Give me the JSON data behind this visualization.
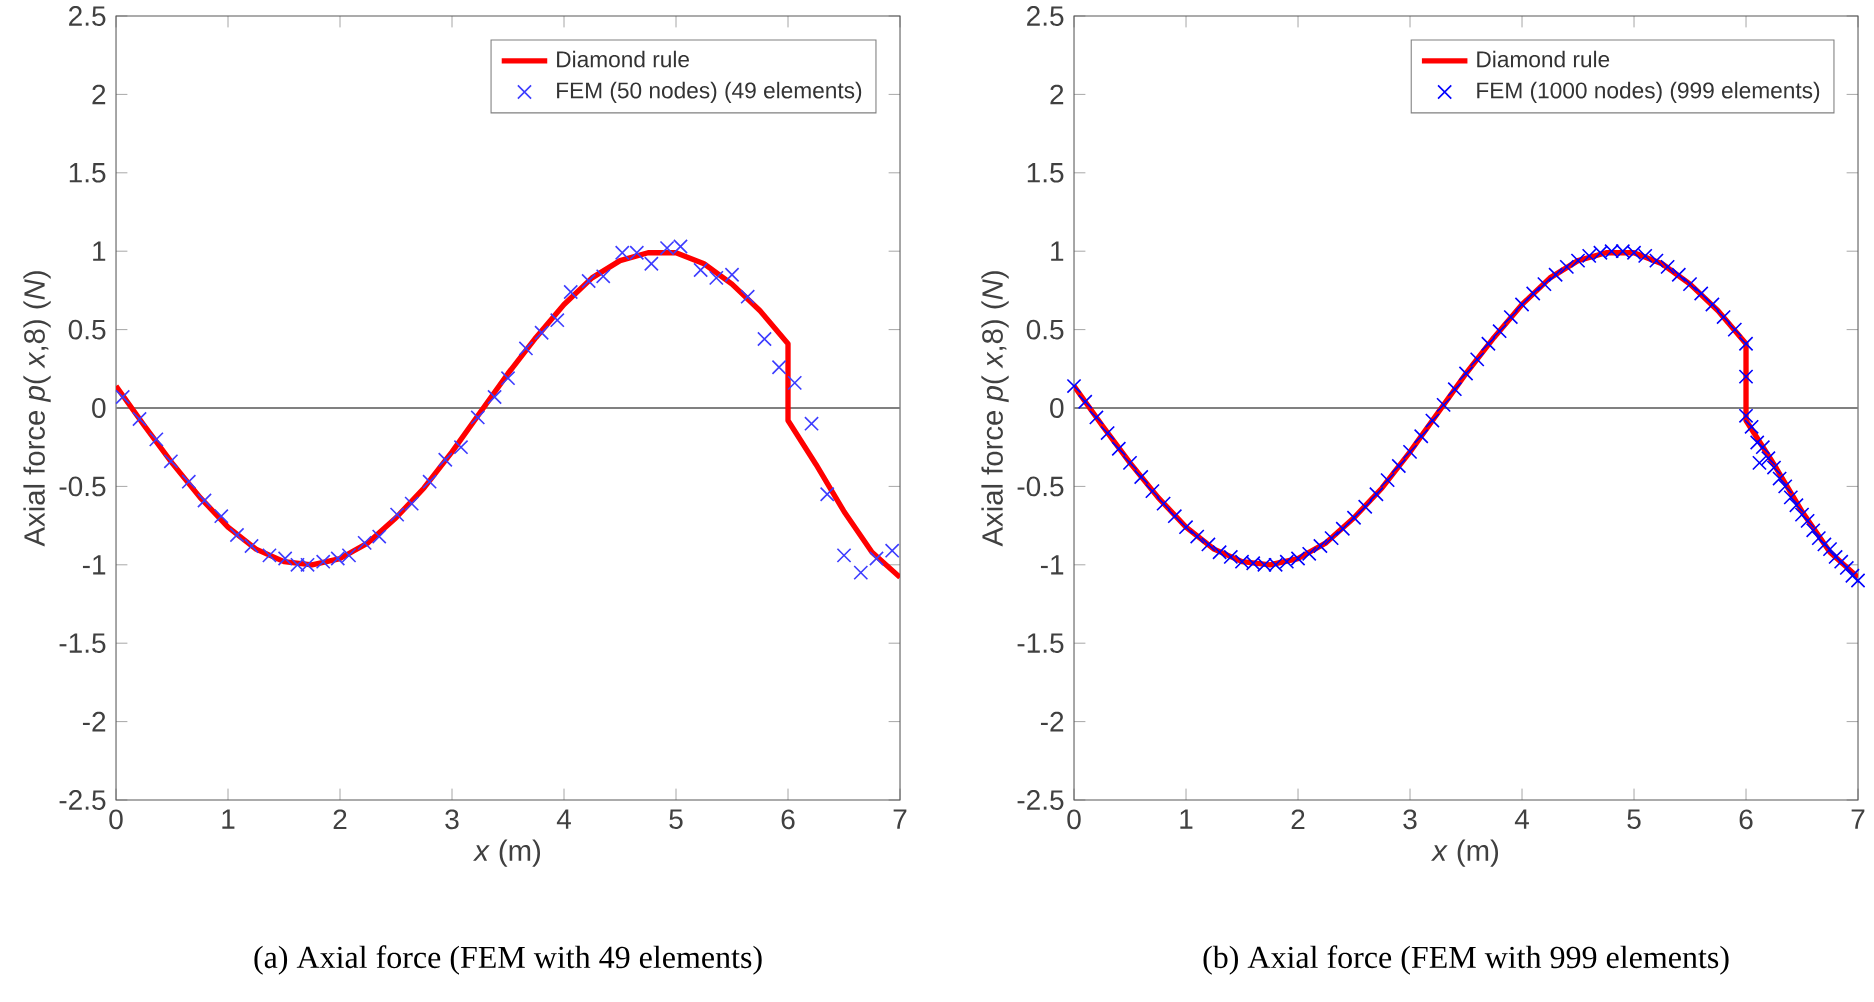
{
  "chart_data": [
    {
      "type": "line",
      "xlabel": "*x* (m)",
      "ylabel": "Axial force *p*( *x*,8) (*N*)",
      "xlim": [
        0,
        7
      ],
      "ylim": [
        -2.5,
        2.5
      ],
      "xticks": [
        0,
        1,
        2,
        3,
        4,
        5,
        6,
        7
      ],
      "yticks": [
        -2.5,
        -2,
        -1.5,
        -1,
        -0.5,
        0,
        0.5,
        1,
        1.5,
        2,
        2.5
      ],
      "legend": "top right",
      "grid": false,
      "line_style": "solid",
      "ref_lines": [
        {
          "axis": "y",
          "value": 0,
          "color": "#808080"
        }
      ],
      "annotations": [
        "(a) Axial force (FEM with 49 elements)"
      ],
      "series": [
        {
          "name": "Diamond rule",
          "color": "#ff0000",
          "x": [
            0,
            0.25,
            0.5,
            0.75,
            1,
            1.25,
            1.5,
            1.75,
            2,
            2.25,
            2.5,
            2.75,
            3,
            3.25,
            3.5,
            3.75,
            4,
            4.25,
            4.5,
            4.75,
            5,
            5.25,
            5.5,
            5.75,
            6,
            6,
            6.25,
            6.5,
            6.75,
            7
          ],
          "values": [
            0.14,
            -0.11,
            -0.35,
            -0.57,
            -0.76,
            -0.9,
            -0.98,
            -1.0,
            -0.96,
            -0.86,
            -0.7,
            -0.51,
            -0.28,
            -0.03,
            0.22,
            0.45,
            0.66,
            0.83,
            0.94,
            0.99,
            0.99,
            0.92,
            0.79,
            0.62,
            0.41,
            -0.08,
            -0.36,
            -0.66,
            -0.92,
            -1.08
          ]
        },
        {
          "name": "FEM (50 nodes) (49 elements)",
          "type": "scatter",
          "marker": "cross",
          "color": "#3c3cff",
          "x": [
            0.06,
            0.21,
            0.36,
            0.49,
            0.65,
            0.79,
            0.94,
            1.08,
            1.21,
            1.37,
            1.51,
            1.62,
            1.71,
            1.85,
            1.98,
            2.08,
            2.22,
            2.35,
            2.51,
            2.64,
            2.8,
            2.94,
            3.08,
            3.23,
            3.38,
            3.5,
            3.66,
            3.8,
            3.94,
            4.06,
            4.22,
            4.35,
            4.52,
            4.65,
            4.78,
            4.92,
            5.04,
            5.22,
            5.36,
            5.5,
            5.64,
            5.79,
            5.92,
            6.06,
            6.21,
            6.35,
            6.5,
            6.65,
            6.79,
            6.93
          ],
          "values": [
            0.07,
            -0.07,
            -0.2,
            -0.34,
            -0.47,
            -0.59,
            -0.69,
            -0.81,
            -0.88,
            -0.94,
            -0.96,
            -1.0,
            -1.0,
            -0.98,
            -0.96,
            -0.94,
            -0.86,
            -0.82,
            -0.68,
            -0.61,
            -0.47,
            -0.33,
            -0.25,
            -0.06,
            0.07,
            0.19,
            0.38,
            0.48,
            0.56,
            0.74,
            0.81,
            0.84,
            0.99,
            0.99,
            0.92,
            1.02,
            1.03,
            0.88,
            0.83,
            0.85,
            0.71,
            0.44,
            0.26,
            0.16,
            -0.1,
            -0.55,
            -0.94,
            -1.05,
            -0.96,
            -0.91
          ]
        }
      ]
    },
    {
      "type": "line",
      "xlabel": "*x* (m)",
      "ylabel": "Axial force *p*( *x*,8) (*N*)",
      "xlim": [
        0,
        7
      ],
      "ylim": [
        -2.5,
        2.5
      ],
      "xticks": [
        0,
        1,
        2,
        3,
        4,
        5,
        6,
        7
      ],
      "yticks": [
        -2.5,
        -2,
        -1.5,
        -1,
        -0.5,
        0,
        0.5,
        1,
        1.5,
        2,
        2.5
      ],
      "legend": "top right",
      "grid": false,
      "line_style": "solid",
      "ref_lines": [
        {
          "axis": "y",
          "value": 0,
          "color": "#808080"
        }
      ],
      "annotations": [
        "(b) Axial force (FEM with 999 elements)"
      ],
      "series": [
        {
          "name": "Diamond rule",
          "color": "#ff0000",
          "x": [
            0,
            0.25,
            0.5,
            0.75,
            1,
            1.25,
            1.5,
            1.75,
            2,
            2.25,
            2.5,
            2.75,
            3,
            3.25,
            3.5,
            3.75,
            4,
            4.25,
            4.5,
            4.75,
            5,
            5.25,
            5.5,
            5.75,
            6,
            6,
            6.25,
            6.5,
            6.75,
            7
          ],
          "values": [
            0.14,
            -0.11,
            -0.35,
            -0.57,
            -0.76,
            -0.9,
            -0.98,
            -1.0,
            -0.96,
            -0.86,
            -0.7,
            -0.51,
            -0.28,
            -0.03,
            0.22,
            0.45,
            0.66,
            0.83,
            0.94,
            0.99,
            0.99,
            0.92,
            0.79,
            0.62,
            0.41,
            -0.08,
            -0.36,
            -0.66,
            -0.92,
            -1.08
          ]
        },
        {
          "name": "FEM (1000 nodes) (999 elements)",
          "type": "scatter",
          "marker": "cross",
          "color": "#0000ff",
          "x": [
            0,
            0.1,
            0.2,
            0.3,
            0.4,
            0.5,
            0.6,
            0.7,
            0.8,
            0.9,
            1.0,
            1.1,
            1.2,
            1.3,
            1.4,
            1.5,
            1.6,
            1.7,
            1.8,
            1.9,
            2.0,
            2.1,
            2.2,
            2.3,
            2.4,
            2.5,
            2.6,
            2.7,
            2.8,
            2.9,
            3.0,
            3.1,
            3.2,
            3.3,
            3.4,
            3.5,
            3.6,
            3.7,
            3.8,
            3.9,
            4.0,
            4.1,
            4.2,
            4.3,
            4.4,
            4.5,
            4.6,
            4.7,
            4.8,
            4.9,
            5.0,
            5.1,
            5.2,
            5.3,
            5.4,
            5.5,
            5.6,
            5.7,
            5.8,
            5.9,
            6.0,
            6.0,
            6.0,
            6.05,
            6.1,
            6.12,
            6.15,
            6.2,
            6.25,
            6.3,
            6.35,
            6.4,
            6.45,
            6.5,
            6.55,
            6.6,
            6.65,
            6.7,
            6.75,
            6.8,
            6.85,
            6.9,
            6.95,
            7.0
          ],
          "values": [
            0.14,
            0.04,
            -0.06,
            -0.16,
            -0.26,
            -0.35,
            -0.44,
            -0.53,
            -0.61,
            -0.69,
            -0.76,
            -0.82,
            -0.87,
            -0.92,
            -0.95,
            -0.98,
            -0.99,
            -1.0,
            -1.0,
            -0.98,
            -0.96,
            -0.93,
            -0.88,
            -0.83,
            -0.77,
            -0.7,
            -0.63,
            -0.55,
            -0.46,
            -0.37,
            -0.28,
            -0.18,
            -0.08,
            0.02,
            0.12,
            0.22,
            0.31,
            0.41,
            0.49,
            0.58,
            0.66,
            0.73,
            0.79,
            0.85,
            0.9,
            0.94,
            0.97,
            0.99,
            1.0,
            1.0,
            0.99,
            0.97,
            0.94,
            0.9,
            0.85,
            0.79,
            0.73,
            0.66,
            0.58,
            0.5,
            0.41,
            0.2,
            -0.05,
            -0.12,
            -0.22,
            -0.35,
            -0.25,
            -0.32,
            -0.38,
            -0.45,
            -0.5,
            -0.57,
            -0.62,
            -0.68,
            -0.72,
            -0.78,
            -0.83,
            -0.87,
            -0.9,
            -0.95,
            -0.98,
            -1.02,
            -1.07,
            -1.1
          ]
        }
      ]
    }
  ]
}
